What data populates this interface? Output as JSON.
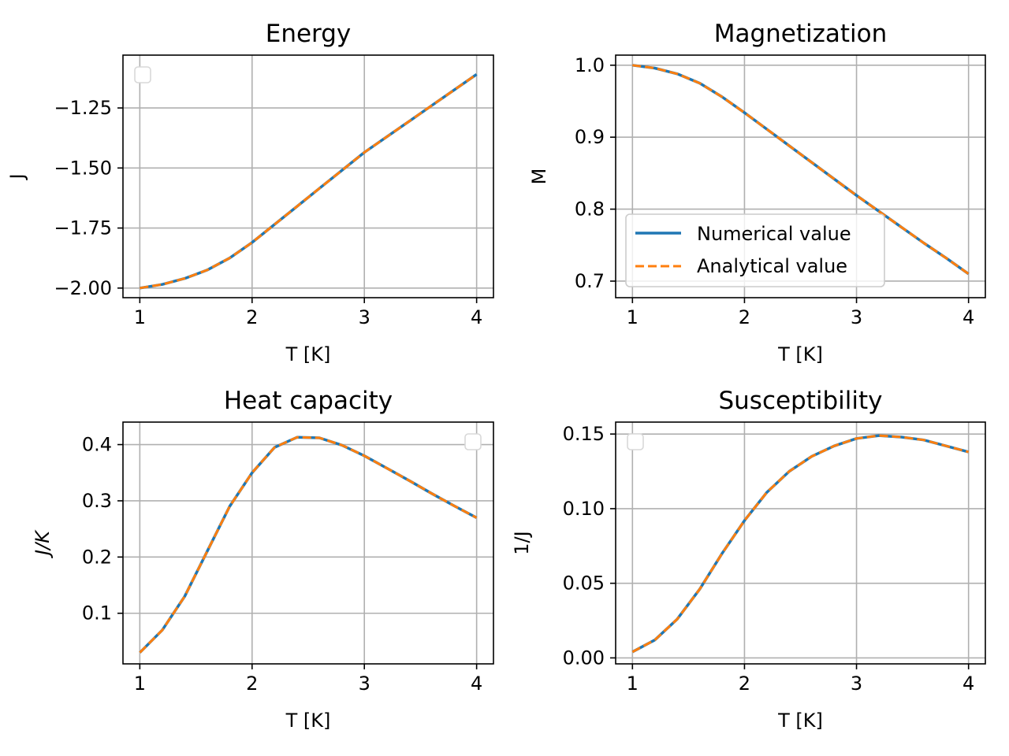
{
  "chart_data": [
    {
      "type": "line",
      "title": "Energy",
      "xlabel": "T [K]",
      "ylabel": "J",
      "xlim": [
        0.85,
        4.15
      ],
      "ylim": [
        -2.04,
        -1.03
      ],
      "xticks": [
        1,
        2,
        3,
        4
      ],
      "xtick_labels": [
        "1",
        "2",
        "3",
        "4"
      ],
      "yticks": [
        -2.0,
        -1.75,
        -1.5,
        -1.25
      ],
      "ytick_labels": [
        "−2.00",
        "−1.75",
        "−1.50",
        "−1.25"
      ],
      "grid": true,
      "legend": {
        "placement": "upper left",
        "empty": true
      },
      "x": [
        1.0,
        1.2,
        1.4,
        1.6,
        1.8,
        2.0,
        2.2,
        2.4,
        2.6,
        2.8,
        3.0,
        3.2,
        3.4,
        3.6,
        3.8,
        4.0
      ],
      "series": [
        {
          "values": [
            -2.0,
            -1.985,
            -1.96,
            -1.925,
            -1.875,
            -1.81,
            -1.735,
            -1.66,
            -1.585,
            -1.51,
            -1.435,
            -1.37,
            -1.305,
            -1.24,
            -1.175,
            -1.11
          ]
        },
        {
          "values": [
            -2.0,
            -1.985,
            -1.96,
            -1.925,
            -1.875,
            -1.81,
            -1.735,
            -1.66,
            -1.585,
            -1.51,
            -1.435,
            -1.37,
            -1.305,
            -1.24,
            -1.175,
            -1.11
          ]
        }
      ]
    },
    {
      "type": "line",
      "title": "Magnetization",
      "xlabel": "T [K]",
      "ylabel": "M",
      "xlim": [
        0.85,
        4.15
      ],
      "ylim": [
        0.677,
        1.014
      ],
      "xticks": [
        1,
        2,
        3,
        4
      ],
      "xtick_labels": [
        "1",
        "2",
        "3",
        "4"
      ],
      "yticks": [
        0.7,
        0.8,
        0.9,
        1.0
      ],
      "ytick_labels": [
        "0.7",
        "0.8",
        "0.9",
        "1.0"
      ],
      "grid": true,
      "legend": {
        "placement": "lower left",
        "empty": false
      },
      "x": [
        1.0,
        1.2,
        1.4,
        1.6,
        1.8,
        2.0,
        2.2,
        2.4,
        2.6,
        2.8,
        3.0,
        3.2,
        3.4,
        3.6,
        3.8,
        4.0
      ],
      "series": [
        {
          "name": "Numerical value",
          "values": [
            1.0,
            0.996,
            0.988,
            0.975,
            0.956,
            0.934,
            0.911,
            0.888,
            0.865,
            0.842,
            0.819,
            0.797,
            0.775,
            0.753,
            0.732,
            0.71
          ]
        },
        {
          "name": "Analytical value",
          "values": [
            1.0,
            0.996,
            0.988,
            0.975,
            0.956,
            0.934,
            0.911,
            0.888,
            0.865,
            0.842,
            0.819,
            0.797,
            0.775,
            0.753,
            0.732,
            0.71
          ]
        }
      ]
    },
    {
      "type": "line",
      "title": "Heat capacity",
      "xlabel": "T [K]",
      "ylabel": "J/K",
      "xlim": [
        0.85,
        4.15
      ],
      "ylim": [
        0.01,
        0.44
      ],
      "xticks": [
        1,
        2,
        3,
        4
      ],
      "xtick_labels": [
        "1",
        "2",
        "3",
        "4"
      ],
      "yticks": [
        0.1,
        0.2,
        0.3,
        0.4
      ],
      "ytick_labels": [
        "0.1",
        "0.2",
        "0.3",
        "0.4"
      ],
      "grid": true,
      "legend": {
        "placement": "upper right",
        "empty": true
      },
      "x": [
        1.0,
        1.2,
        1.4,
        1.6,
        1.8,
        2.0,
        2.2,
        2.4,
        2.6,
        2.8,
        3.0,
        3.2,
        3.4,
        3.6,
        3.8,
        4.0
      ],
      "series": [
        {
          "values": [
            0.03,
            0.07,
            0.13,
            0.21,
            0.29,
            0.35,
            0.395,
            0.413,
            0.412,
            0.399,
            0.38,
            0.358,
            0.336,
            0.313,
            0.291,
            0.27
          ]
        },
        {
          "values": [
            0.03,
            0.07,
            0.13,
            0.21,
            0.29,
            0.35,
            0.395,
            0.413,
            0.412,
            0.399,
            0.38,
            0.358,
            0.336,
            0.313,
            0.291,
            0.27
          ]
        }
      ]
    },
    {
      "type": "line",
      "title": "Susceptibility",
      "xlabel": "T [K]",
      "ylabel": "1/J",
      "xlim": [
        0.85,
        4.15
      ],
      "ylim": [
        -0.004,
        0.158
      ],
      "xticks": [
        1,
        2,
        3,
        4
      ],
      "xtick_labels": [
        "1",
        "2",
        "3",
        "4"
      ],
      "yticks": [
        0.0,
        0.05,
        0.1,
        0.15
      ],
      "ytick_labels": [
        "0.00",
        "0.05",
        "0.10",
        "0.15"
      ],
      "grid": true,
      "legend": {
        "placement": "upper left",
        "empty": true
      },
      "x": [
        1.0,
        1.2,
        1.4,
        1.6,
        1.8,
        2.0,
        2.2,
        2.4,
        2.6,
        2.8,
        3.0,
        3.2,
        3.4,
        3.6,
        3.8,
        4.0
      ],
      "series": [
        {
          "values": [
            0.004,
            0.012,
            0.026,
            0.046,
            0.07,
            0.092,
            0.111,
            0.125,
            0.135,
            0.142,
            0.147,
            0.149,
            0.148,
            0.146,
            0.142,
            0.138
          ]
        },
        {
          "values": [
            0.004,
            0.012,
            0.026,
            0.046,
            0.07,
            0.092,
            0.111,
            0.125,
            0.135,
            0.142,
            0.147,
            0.149,
            0.148,
            0.146,
            0.142,
            0.138
          ]
        }
      ]
    }
  ],
  "colors": {
    "numerical": "#1f77b4",
    "analytical": "#ff7f0e",
    "grid": "#b0b0b0",
    "axes": "#000000"
  }
}
